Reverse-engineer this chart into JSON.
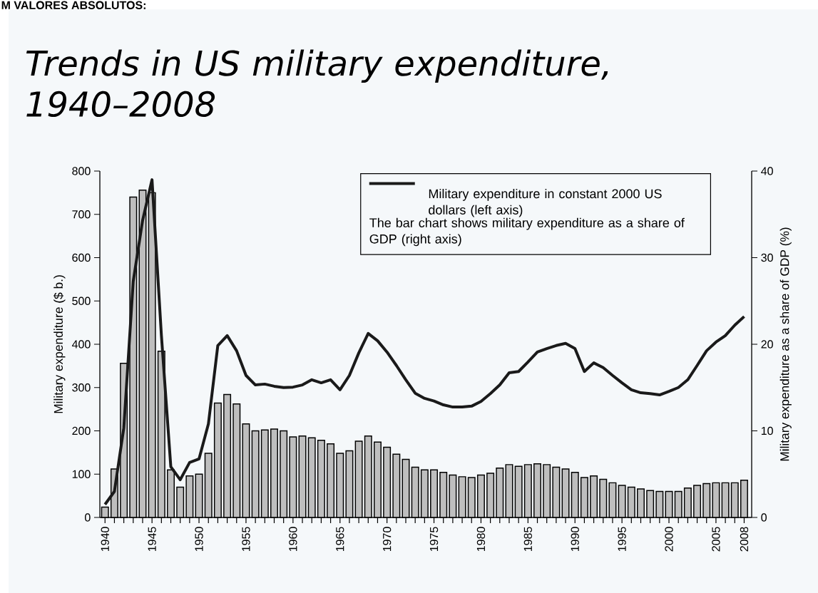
{
  "chart_data": {
    "type": "bar",
    "title": "Trends in US military expenditure, 1940–2008",
    "ylabel": "Military expenditure ($ b.)",
    "y2label": "Military expenditure as a share of GDP (%)",
    "annotations": [
      "M VALORES ABSOLUTOS:",
      "The bar chart shows military expenditure as a share of GDP (right axis)"
    ],
    "categories": [
      "1940",
      null,
      null,
      null,
      null,
      "1945",
      null,
      null,
      null,
      null,
      "1950",
      null,
      null,
      null,
      null,
      "1955",
      null,
      null,
      null,
      null,
      "1960",
      null,
      null,
      null,
      null,
      "1965",
      null,
      null,
      null,
      null,
      "1970",
      null,
      null,
      null,
      null,
      "1975",
      null,
      null,
      null,
      null,
      "1980",
      null,
      null,
      null,
      null,
      "1985",
      null,
      null,
      null,
      null,
      "1990",
      null,
      null,
      null,
      null,
      "1995",
      null,
      null,
      null,
      null,
      "2000",
      null,
      null,
      null,
      null,
      "2005",
      null,
      null,
      "2008"
    ],
    "series": [
      {
        "axis": "y2",
        "color": "#bebebe",
        "values": [
          1.2,
          5.6,
          17.8,
          37.0,
          37.8,
          37.5,
          19.2,
          5.5,
          3.5,
          4.8,
          5.0,
          7.4,
          13.2,
          14.2,
          13.1,
          10.8,
          10.0,
          10.1,
          10.2,
          10.0,
          9.3,
          9.4,
          9.2,
          8.9,
          8.5,
          7.4,
          7.7,
          8.8,
          9.4,
          8.7,
          8.1,
          7.3,
          6.7,
          5.8,
          5.5,
          5.5,
          5.2,
          4.9,
          4.7,
          4.6,
          4.9,
          5.1,
          5.7,
          6.1,
          5.9,
          6.1,
          6.2,
          6.1,
          5.8,
          5.6,
          5.2,
          4.6,
          4.8,
          4.4,
          4.0,
          3.7,
          3.5,
          3.3,
          3.1,
          3.0,
          3.0,
          3.0,
          3.4,
          3.7,
          3.9,
          4.0,
          4.0,
          4.0,
          4.3
        ]
      },
      {
        "type": "line",
        "name": "Military expenditure in constant 2000 US dollars (left axis)",
        "color": "#1a1a1a",
        "values": [
          30,
          60,
          207,
          545,
          686,
          780,
          420,
          117,
          87,
          127,
          135,
          216,
          397,
          420,
          385,
          328,
          306,
          308,
          303,
          300,
          301,
          306,
          318,
          311,
          318,
          295,
          328,
          380,
          425,
          408,
          382,
          351,
          318,
          287,
          275,
          269,
          260,
          255,
          255,
          257,
          268,
          286,
          306,
          334,
          337,
          359,
          382,
          390,
          397,
          402,
          390,
          337,
          357,
          346,
          328,
          311,
          295,
          288,
          286,
          283,
          291,
          300,
          318,
          351,
          385,
          405,
          420,
          444,
          464
        ]
      }
    ],
    "ylim": [
      0,
      800
    ],
    "yticks": [
      0,
      100,
      200,
      300,
      400,
      500,
      600,
      700,
      800
    ],
    "y2lim": [
      0,
      40
    ],
    "y2ticks": [
      0,
      10,
      20,
      30,
      40
    ],
    "legend": "top right",
    "marker": "none",
    "line_style": "solid",
    "grid": false
  }
}
